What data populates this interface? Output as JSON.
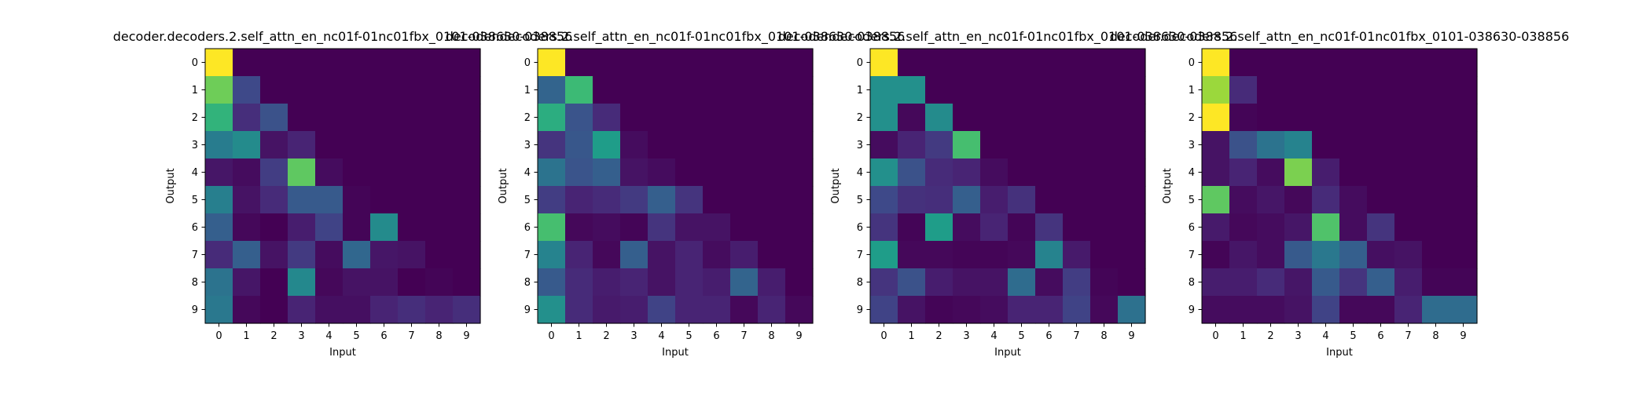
{
  "chart_data": [
    {
      "type": "heatmap",
      "title": "decoder.decoders.2.self_attn_en_nc01f-01nc01fbx_0101-038630-038856",
      "xlabel": "Input",
      "ylabel": "Output",
      "x_ticks": [
        "0",
        "1",
        "2",
        "3",
        "4",
        "5",
        "6",
        "7",
        "8",
        "9"
      ],
      "y_ticks": [
        "0",
        "1",
        "2",
        "3",
        "4",
        "5",
        "6",
        "7",
        "8",
        "9"
      ],
      "colormap": "viridis",
      "value_range": [
        0,
        1
      ],
      "values": [
        [
          1.0,
          0.0,
          0.0,
          0.0,
          0.0,
          0.0,
          0.0,
          0.0,
          0.0,
          0.0
        ],
        [
          0.78,
          0.22,
          0.0,
          0.0,
          0.0,
          0.0,
          0.0,
          0.0,
          0.0,
          0.0
        ],
        [
          0.65,
          0.13,
          0.25,
          0.0,
          0.0,
          0.0,
          0.0,
          0.0,
          0.0,
          0.0
        ],
        [
          0.42,
          0.48,
          0.05,
          0.1,
          0.0,
          0.0,
          0.0,
          0.0,
          0.0,
          0.0
        ],
        [
          0.06,
          0.03,
          0.18,
          0.75,
          0.03,
          0.0,
          0.0,
          0.0,
          0.0,
          0.0
        ],
        [
          0.43,
          0.05,
          0.12,
          0.28,
          0.28,
          0.01,
          0.0,
          0.0,
          0.0,
          0.0
        ],
        [
          0.3,
          0.02,
          0.0,
          0.08,
          0.2,
          0.01,
          0.48,
          0.0,
          0.0,
          0.0
        ],
        [
          0.12,
          0.3,
          0.05,
          0.17,
          0.03,
          0.33,
          0.06,
          0.05,
          0.0,
          0.0
        ],
        [
          0.38,
          0.06,
          0.0,
          0.47,
          0.02,
          0.05,
          0.05,
          0.0,
          0.01,
          0.0
        ],
        [
          0.4,
          0.02,
          0.0,
          0.1,
          0.04,
          0.04,
          0.1,
          0.13,
          0.1,
          0.13
        ]
      ]
    },
    {
      "type": "heatmap",
      "title": "decoder.decoders.2.self_attn_en_nc01f-01nc01fbx_0101-038630-038856",
      "xlabel": "Input",
      "ylabel": "Output",
      "x_ticks": [
        "0",
        "1",
        "2",
        "3",
        "4",
        "5",
        "6",
        "7",
        "8",
        "9"
      ],
      "y_ticks": [
        "0",
        "1",
        "2",
        "3",
        "4",
        "5",
        "6",
        "7",
        "8",
        "9"
      ],
      "colormap": "viridis",
      "value_range": [
        0,
        1
      ],
      "values": [
        [
          1.0,
          0.0,
          0.0,
          0.0,
          0.0,
          0.0,
          0.0,
          0.0,
          0.0,
          0.0
        ],
        [
          0.32,
          0.68,
          0.0,
          0.0,
          0.0,
          0.0,
          0.0,
          0.0,
          0.0,
          0.0
        ],
        [
          0.62,
          0.26,
          0.12,
          0.0,
          0.0,
          0.0,
          0.0,
          0.0,
          0.0,
          0.0
        ],
        [
          0.15,
          0.27,
          0.55,
          0.03,
          0.0,
          0.0,
          0.0,
          0.0,
          0.0,
          0.0
        ],
        [
          0.38,
          0.26,
          0.3,
          0.05,
          0.03,
          0.0,
          0.0,
          0.0,
          0.0,
          0.0
        ],
        [
          0.18,
          0.1,
          0.12,
          0.17,
          0.3,
          0.15,
          0.0,
          0.0,
          0.0,
          0.0
        ],
        [
          0.7,
          0.02,
          0.03,
          0.01,
          0.15,
          0.05,
          0.05,
          0.0,
          0.0,
          0.0
        ],
        [
          0.45,
          0.1,
          0.02,
          0.3,
          0.05,
          0.1,
          0.03,
          0.08,
          0.0,
          0.0
        ],
        [
          0.28,
          0.12,
          0.08,
          0.1,
          0.05,
          0.1,
          0.08,
          0.32,
          0.08,
          0.0
        ],
        [
          0.5,
          0.12,
          0.07,
          0.08,
          0.2,
          0.1,
          0.1,
          0.02,
          0.1,
          0.02
        ]
      ]
    },
    {
      "type": "heatmap",
      "title": "decoder.decoders.2.self_attn_en_nc01f-01nc01fbx_0101-038630-038856",
      "xlabel": "Input",
      "ylabel": "Output",
      "x_ticks": [
        "0",
        "1",
        "2",
        "3",
        "4",
        "5",
        "6",
        "7",
        "8",
        "9"
      ],
      "y_ticks": [
        "0",
        "1",
        "2",
        "3",
        "4",
        "5",
        "6",
        "7",
        "8",
        "9"
      ],
      "colormap": "viridis",
      "value_range": [
        0,
        1
      ],
      "values": [
        [
          1.0,
          0.0,
          0.0,
          0.0,
          0.0,
          0.0,
          0.0,
          0.0,
          0.0,
          0.0
        ],
        [
          0.5,
          0.5,
          0.0,
          0.0,
          0.0,
          0.0,
          0.0,
          0.0,
          0.0,
          0.0
        ],
        [
          0.5,
          0.02,
          0.48,
          0.0,
          0.0,
          0.0,
          0.0,
          0.0,
          0.0,
          0.0
        ],
        [
          0.03,
          0.1,
          0.17,
          0.7,
          0.0,
          0.0,
          0.0,
          0.0,
          0.0,
          0.0
        ],
        [
          0.5,
          0.25,
          0.12,
          0.1,
          0.03,
          0.0,
          0.0,
          0.0,
          0.0,
          0.0
        ],
        [
          0.22,
          0.14,
          0.13,
          0.3,
          0.08,
          0.14,
          0.0,
          0.0,
          0.0,
          0.0
        ],
        [
          0.15,
          0.01,
          0.55,
          0.03,
          0.1,
          0.01,
          0.15,
          0.0,
          0.0,
          0.0
        ],
        [
          0.55,
          0.02,
          0.02,
          0.01,
          0.01,
          0.02,
          0.45,
          0.07,
          0.0,
          0.0
        ],
        [
          0.15,
          0.25,
          0.08,
          0.05,
          0.05,
          0.35,
          0.03,
          0.18,
          0.01,
          0.0
        ],
        [
          0.2,
          0.05,
          0.01,
          0.02,
          0.03,
          0.1,
          0.1,
          0.2,
          0.02,
          0.37
        ]
      ]
    },
    {
      "type": "heatmap",
      "title": "decoder.decoders.2.self_attn_en_nc01f-01nc01fbx_0101-038630-038856",
      "xlabel": "Input",
      "ylabel": "Output",
      "x_ticks": [
        "0",
        "1",
        "2",
        "3",
        "4",
        "5",
        "6",
        "7",
        "8",
        "9"
      ],
      "y_ticks": [
        "0",
        "1",
        "2",
        "3",
        "4",
        "5",
        "6",
        "7",
        "8",
        "9"
      ],
      "colormap": "viridis",
      "value_range": [
        0,
        1
      ],
      "values": [
        [
          1.0,
          0.0,
          0.0,
          0.0,
          0.0,
          0.0,
          0.0,
          0.0,
          0.0,
          0.0
        ],
        [
          0.85,
          0.12,
          0.0,
          0.0,
          0.0,
          0.0,
          0.0,
          0.0,
          0.0,
          0.0
        ],
        [
          1.0,
          0.01,
          0.0,
          0.0,
          0.0,
          0.0,
          0.0,
          0.0,
          0.0,
          0.0
        ],
        [
          0.05,
          0.25,
          0.38,
          0.45,
          0.0,
          0.0,
          0.0,
          0.0,
          0.0,
          0.0
        ],
        [
          0.05,
          0.1,
          0.03,
          0.8,
          0.08,
          0.0,
          0.0,
          0.0,
          0.0,
          0.0
        ],
        [
          0.75,
          0.03,
          0.06,
          0.02,
          0.12,
          0.03,
          0.0,
          0.0,
          0.0,
          0.0
        ],
        [
          0.07,
          0.02,
          0.03,
          0.06,
          0.72,
          0.03,
          0.15,
          0.0,
          0.0,
          0.0
        ],
        [
          0.01,
          0.06,
          0.03,
          0.28,
          0.4,
          0.3,
          0.04,
          0.05,
          0.0,
          0.0
        ],
        [
          0.08,
          0.08,
          0.12,
          0.06,
          0.28,
          0.15,
          0.3,
          0.08,
          0.01,
          0.01
        ],
        [
          0.03,
          0.03,
          0.03,
          0.05,
          0.2,
          0.02,
          0.02,
          0.1,
          0.35,
          0.35
        ]
      ]
    }
  ]
}
